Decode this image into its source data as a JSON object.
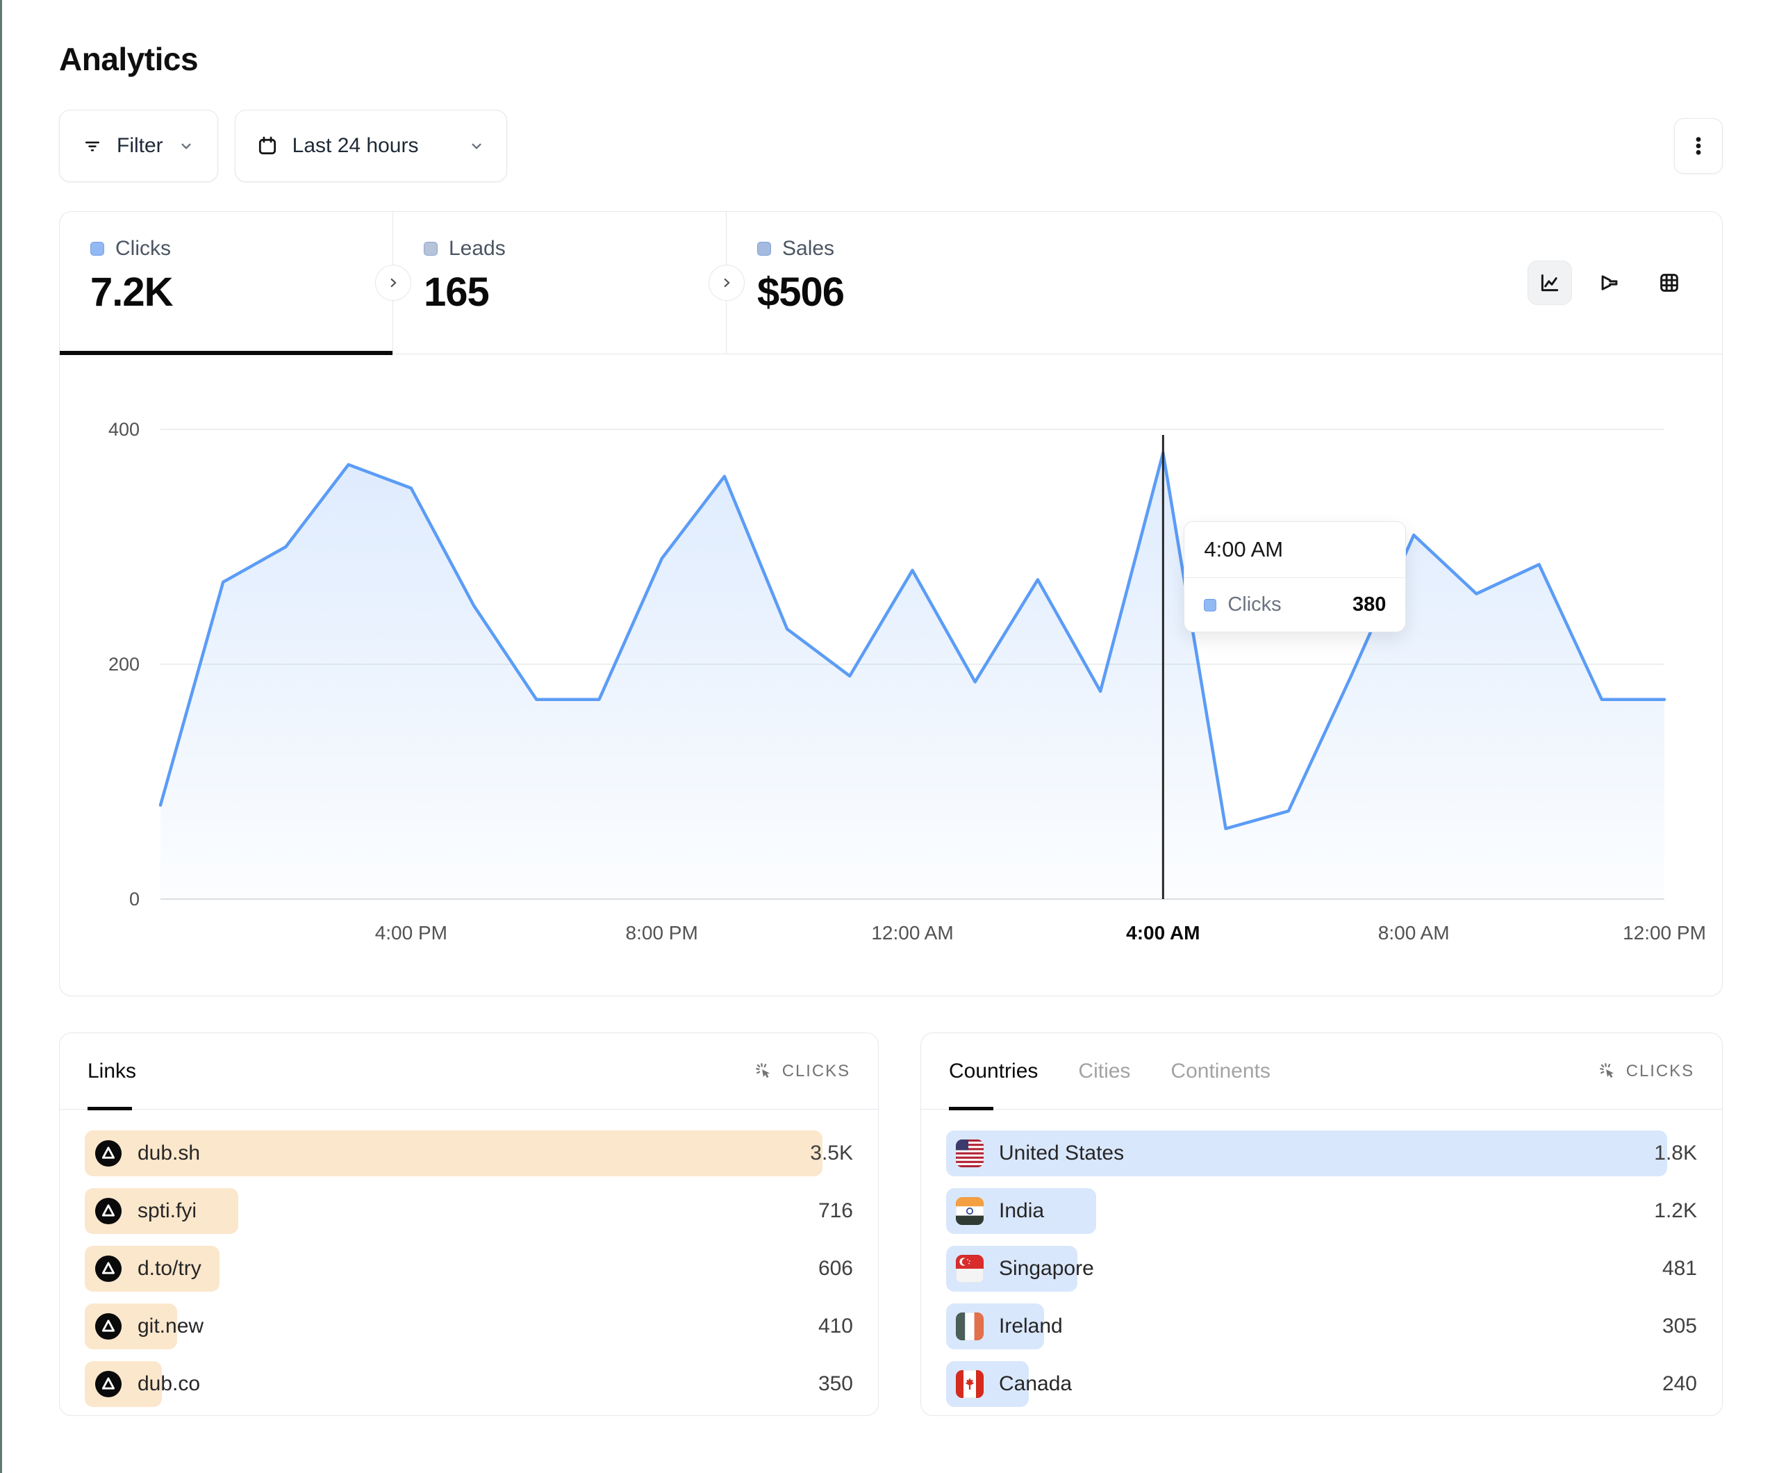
{
  "page": {
    "title": "Analytics"
  },
  "toolbar": {
    "filter": {
      "label": "Filter"
    },
    "date_range": {
      "label": "Last 24 hours"
    }
  },
  "stats": {
    "tabs": [
      {
        "label": "Clicks",
        "value": "7.2K",
        "active": true,
        "marker_color": "#92b9f3"
      },
      {
        "label": "Leads",
        "value": "165",
        "active": false,
        "marker_color": "#b7c3d9"
      },
      {
        "label": "Sales",
        "value": "$506",
        "active": false,
        "marker_color": "#a4bbdf"
      }
    ]
  },
  "chart_data": {
    "type": "area",
    "title": "Clicks over the last 24 hours",
    "series": [
      {
        "name": "Clicks",
        "color": "#5b9cf6",
        "values": [
          80,
          270,
          300,
          370,
          350,
          250,
          170,
          170,
          290,
          360,
          230,
          190,
          280,
          185,
          272,
          177,
          380,
          60,
          75,
          190,
          310,
          260,
          285,
          170,
          170
        ]
      }
    ],
    "x": [
      "12:00 PM",
      "1:00 PM",
      "2:00 PM",
      "3:00 PM",
      "4:00 PM",
      "5:00 PM",
      "6:00 PM",
      "7:00 PM",
      "8:00 PM",
      "9:00 PM",
      "10:00 PM",
      "11:00 PM",
      "12:00 AM",
      "1:00 AM",
      "2:00 AM",
      "3:00 AM",
      "4:00 AM",
      "5:00 AM",
      "6:00 AM",
      "7:00 AM",
      "8:00 AM",
      "9:00 AM",
      "10:00 AM",
      "11:00 AM",
      "12:00 PM"
    ],
    "x_tick_indices": [
      4,
      8,
      12,
      16,
      20,
      24
    ],
    "yticks": [
      0,
      200,
      400
    ],
    "ylim": [
      0,
      400
    ],
    "grid": "horizontal",
    "legend_position": "none",
    "area_fill_top": "rgba(91,156,246,0.20)",
    "area_fill_bottom": "rgba(91,156,246,0.02)",
    "tooltip": {
      "index": 16,
      "time": "4:00 AM",
      "label": "Clicks",
      "value": "380"
    }
  },
  "links_panel": {
    "tabs": [
      {
        "label": "Links",
        "active": true
      }
    ],
    "metric_label": "CLICKS",
    "bar_color": "#fbe7cc",
    "rows": [
      {
        "label": "dub.sh",
        "value": "3.5K",
        "bar_pct": 96,
        "icon": "dub-logo"
      },
      {
        "label": "spti.fyi",
        "value": "716",
        "bar_pct": 20,
        "icon": "dub-logo"
      },
      {
        "label": "d.to/try",
        "value": "606",
        "bar_pct": 17.5,
        "icon": "dub-logo"
      },
      {
        "label": "git.new",
        "value": "410",
        "bar_pct": 12,
        "icon": "dub-logo"
      },
      {
        "label": "dub.co",
        "value": "350",
        "bar_pct": 10,
        "icon": "dub-logo"
      }
    ]
  },
  "countries_panel": {
    "tabs": [
      {
        "label": "Countries",
        "active": true
      },
      {
        "label": "Cities",
        "active": false
      },
      {
        "label": "Continents",
        "active": false
      }
    ],
    "metric_label": "CLICKS",
    "bar_color": "#d9e7fc",
    "rows": [
      {
        "label": "United States",
        "value": "1.8K",
        "bar_pct": 96,
        "flag": "us"
      },
      {
        "label": "India",
        "value": "1.2K",
        "bar_pct": 20,
        "flag": "in"
      },
      {
        "label": "Singapore",
        "value": "481",
        "bar_pct": 17.5,
        "flag": "sg"
      },
      {
        "label": "Ireland",
        "value": "305",
        "bar_pct": 13,
        "flag": "ie"
      },
      {
        "label": "Canada",
        "value": "240",
        "bar_pct": 11,
        "flag": "ca"
      }
    ]
  }
}
